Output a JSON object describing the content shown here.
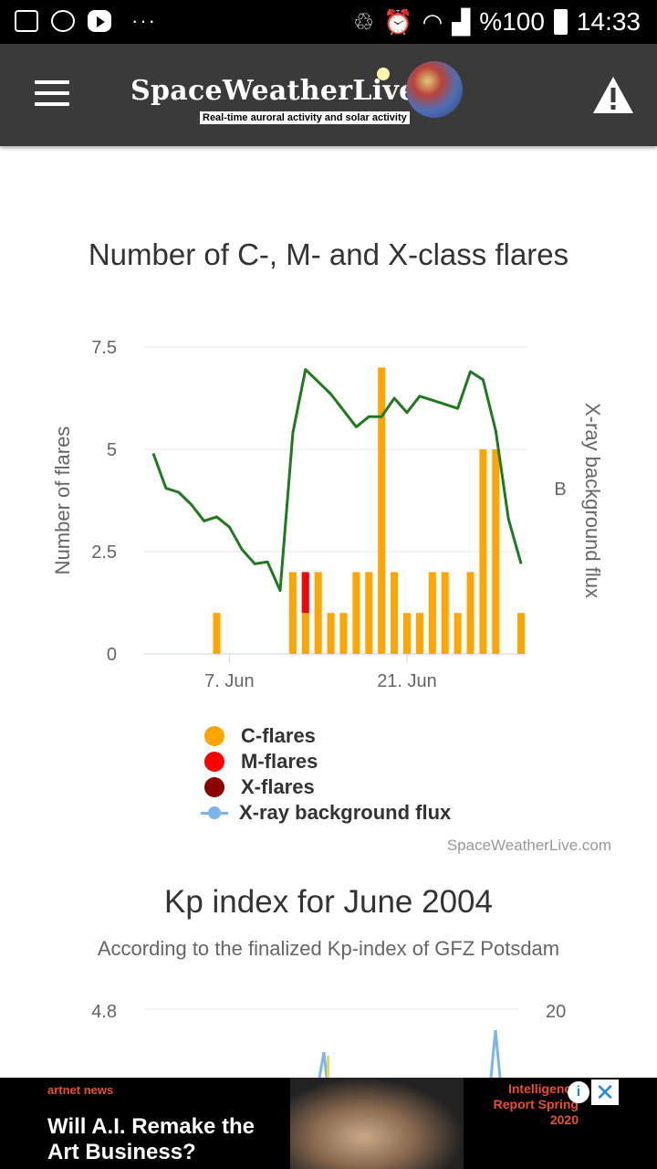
{
  "status_bar": {
    "battery": "%100",
    "time": "14:33",
    "dots": "···"
  },
  "app_bar": {
    "logo_text": "SpaceWeatherLive",
    "tagline": "Real-time auroral activity and solar activity"
  },
  "chart_data": [
    {
      "type": "bar",
      "title": "Number of C-, M- and X-class flares",
      "ylabel": "Number of flares",
      "y2label": "X-ray background flux",
      "y2_tick": "B",
      "ylim": [
        0,
        7.5
      ],
      "yticks": [
        "0",
        "2.5",
        "5",
        "7.5"
      ],
      "xticks": [
        "7. Jun",
        "21. Jun"
      ],
      "x": [
        "1 Jun",
        "2 Jun",
        "3 Jun",
        "4 Jun",
        "5 Jun",
        "6 Jun",
        "7 Jun",
        "8 Jun",
        "9 Jun",
        "10 Jun",
        "11 Jun",
        "12 Jun",
        "13 Jun",
        "14 Jun",
        "15 Jun",
        "16 Jun",
        "17 Jun",
        "18 Jun",
        "19 Jun",
        "20 Jun",
        "21 Jun",
        "22 Jun",
        "23 Jun",
        "24 Jun",
        "25 Jun",
        "26 Jun",
        "27 Jun",
        "28 Jun",
        "29 Jun",
        "30 Jun"
      ],
      "series": [
        {
          "name": "C-flares",
          "color": "#ffa500",
          "values": [
            0,
            0,
            0,
            0,
            0,
            1,
            0,
            0,
            0,
            0,
            0,
            2,
            1,
            2,
            1,
            1,
            2,
            2,
            7,
            2,
            1,
            1,
            2,
            2,
            1,
            2,
            5,
            5,
            0,
            1
          ]
        },
        {
          "name": "M-flares",
          "color": "#ff0000",
          "values": [
            0,
            0,
            0,
            0,
            0,
            0,
            0,
            0,
            0,
            0,
            0,
            0,
            1,
            0,
            0,
            0,
            0,
            0,
            0,
            0,
            0,
            0,
            0,
            0,
            0,
            0,
            0,
            0,
            0,
            0
          ]
        },
        {
          "name": "X-flares",
          "color": "#8b0000",
          "values": [
            0,
            0,
            0,
            0,
            0,
            0,
            0,
            0,
            0,
            0,
            0,
            0,
            0,
            0,
            0,
            0,
            0,
            0,
            0,
            0,
            0,
            0,
            0,
            0,
            0,
            0,
            0,
            0,
            0,
            0
          ]
        }
      ],
      "line_series": {
        "name": "X-ray background flux",
        "color": "#1f7a1f",
        "legend_color": "#7cb5ec",
        "values": [
          4.9,
          4.05,
          3.95,
          3.65,
          3.25,
          3.35,
          3.1,
          2.55,
          2.2,
          2.25,
          1.55,
          5.4,
          6.95,
          6.65,
          6.35,
          5.95,
          5.55,
          5.8,
          5.8,
          6.25,
          5.9,
          6.3,
          6.2,
          6.1,
          6.0,
          6.9,
          6.7,
          5.45,
          3.3,
          2.2
        ]
      },
      "legend": [
        "C-flares",
        "M-flares",
        "X-flares",
        "X-ray background flux"
      ],
      "legend_position": "bottom",
      "grid": true
    },
    {
      "type": "line",
      "title": "Kp index for June 2004",
      "subtitle": "According to the finalized Kp-index of GFZ Potsdam",
      "y_top_label": "4.8",
      "y2_top_label": "20"
    }
  ],
  "credit": "SpaceWeatherLive.com",
  "ad": {
    "brand": "artnet news",
    "headline": "Will A.I. Remake the Art Business?",
    "right_text": "Intelligence Report Spring 2020",
    "info_label": "i",
    "close_label": "✕"
  }
}
